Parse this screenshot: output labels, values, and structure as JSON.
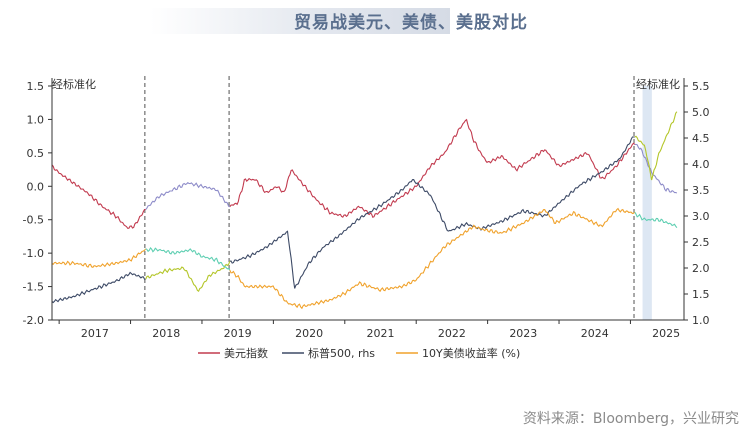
{
  "title": "贸易战美元、美债、美股对比",
  "source": "资料来源：Bloomberg，兴业研究",
  "colors": {
    "dollar": "#c23b4f",
    "dollar_highlight": "#8e8cc9",
    "sp500": "#3d4a66",
    "sp500_highlight": "#b4c62a",
    "yield": "#f0a22c",
    "yield_highlight": "#5fcfb2",
    "shade": "#dde7f3",
    "divider": "#7a7a7a"
  },
  "chart_data": {
    "type": "line",
    "left_axis": {
      "unit_label": "经标准化",
      "ylim": [
        -2.0,
        1.5
      ],
      "ticks": [
        "1.5",
        "1.0",
        "0.5",
        "0.0",
        "-0.5",
        "-1.0",
        "-1.5",
        "-2.0"
      ]
    },
    "right_axis": {
      "unit_label": "经标准化",
      "ylim": [
        1.0,
        5.5
      ],
      "ticks": [
        "5.5",
        "5.0",
        "4.5",
        "4.0",
        "3.5",
        "3.0",
        "2.5",
        "2.0",
        "1.5",
        "1.0"
      ]
    },
    "x_axis": {
      "xlim": [
        2016.9,
        2025.75
      ],
      "tick_labels": [
        "2017",
        "2018",
        "2019",
        "2020",
        "2021",
        "2022",
        "2023",
        "2024",
        "2025"
      ]
    },
    "trade_war_markers": [
      2018.2,
      2019.38,
      2025.05
    ],
    "shaded_period": [
      2025.17,
      2025.3
    ],
    "legend": [
      "美元指数",
      "标普500, rhs",
      "10Y美债收益率 (%)"
    ],
    "series": [
      {
        "name": "美元指数",
        "axis": "left",
        "x": [
          2016.9,
          2017.0,
          2017.2,
          2017.4,
          2017.6,
          2017.8,
          2017.95,
          2018.05,
          2018.2,
          2018.4,
          2018.6,
          2018.8,
          2019.0,
          2019.2,
          2019.38,
          2019.5,
          2019.6,
          2019.75,
          2019.9,
          2020.05,
          2020.15,
          2020.25,
          2020.4,
          2020.6,
          2020.8,
          2021.0,
          2021.2,
          2021.4,
          2021.6,
          2021.8,
          2022.0,
          2022.2,
          2022.4,
          2022.6,
          2022.7,
          2022.8,
          2022.9,
          2023.0,
          2023.2,
          2023.4,
          2023.6,
          2023.8,
          2024.0,
          2024.2,
          2024.4,
          2024.6,
          2024.8,
          2025.05,
          2025.15,
          2025.3,
          2025.5,
          2025.65
        ],
        "y": [
          0.3,
          0.2,
          0.05,
          -0.1,
          -0.3,
          -0.45,
          -0.62,
          -0.6,
          -0.35,
          -0.15,
          -0.05,
          0.05,
          0.0,
          -0.05,
          -0.3,
          -0.25,
          0.1,
          0.1,
          -0.1,
          0.0,
          -0.1,
          0.25,
          0.05,
          -0.2,
          -0.4,
          -0.45,
          -0.3,
          -0.45,
          -0.3,
          -0.15,
          0.0,
          0.3,
          0.5,
          0.85,
          1.0,
          0.7,
          0.5,
          0.35,
          0.45,
          0.25,
          0.4,
          0.55,
          0.3,
          0.4,
          0.5,
          0.1,
          0.3,
          0.65,
          0.55,
          0.2,
          -0.05,
          -0.1
        ]
      },
      {
        "name": "标普500, rhs",
        "axis": "right",
        "x": [
          2016.9,
          2017.2,
          2017.5,
          2017.8,
          2018.0,
          2018.2,
          2018.5,
          2018.75,
          2018.95,
          2019.1,
          2019.3,
          2019.38,
          2019.5,
          2019.7,
          2019.9,
          2020.1,
          2020.2,
          2020.3,
          2020.5,
          2020.7,
          2020.9,
          2021.2,
          2021.5,
          2021.8,
          2021.95,
          2022.2,
          2022.45,
          2022.7,
          2022.9,
          2023.2,
          2023.5,
          2023.8,
          2024.0,
          2024.3,
          2024.6,
          2024.85,
          2025.05,
          2025.2,
          2025.3,
          2025.4,
          2025.65
        ],
        "y": [
          1.35,
          1.45,
          1.6,
          1.75,
          1.9,
          1.8,
          1.95,
          2.0,
          1.55,
          1.85,
          2.0,
          2.1,
          2.15,
          2.25,
          2.4,
          2.6,
          2.7,
          1.6,
          2.1,
          2.4,
          2.6,
          2.95,
          3.2,
          3.5,
          3.7,
          3.4,
          2.7,
          2.85,
          2.75,
          2.9,
          3.1,
          3.0,
          3.25,
          3.6,
          3.85,
          4.1,
          4.55,
          4.35,
          3.7,
          4.2,
          5.0
        ]
      },
      {
        "name": "10Y美债收益率 (%)",
        "axis": "left",
        "x": [
          2016.9,
          2017.2,
          2017.5,
          2017.8,
          2018.0,
          2018.2,
          2018.4,
          2018.6,
          2018.85,
          2019.0,
          2019.2,
          2019.38,
          2019.5,
          2019.6,
          2019.8,
          2020.0,
          2020.2,
          2020.4,
          2020.6,
          2020.8,
          2021.0,
          2021.2,
          2021.5,
          2021.8,
          2022.0,
          2022.2,
          2022.4,
          2022.6,
          2022.8,
          2022.95,
          2023.2,
          2023.5,
          2023.8,
          2023.95,
          2024.2,
          2024.4,
          2024.6,
          2024.8,
          2025.05,
          2025.2,
          2025.4,
          2025.65
        ],
        "y": [
          -1.15,
          -1.15,
          -1.2,
          -1.15,
          -1.1,
          -0.95,
          -0.95,
          -1.0,
          -0.95,
          -1.05,
          -1.1,
          -1.25,
          -1.35,
          -1.5,
          -1.5,
          -1.5,
          -1.75,
          -1.8,
          -1.75,
          -1.7,
          -1.6,
          -1.45,
          -1.55,
          -1.5,
          -1.4,
          -1.15,
          -0.9,
          -0.75,
          -0.6,
          -0.65,
          -0.7,
          -0.55,
          -0.35,
          -0.55,
          -0.4,
          -0.5,
          -0.6,
          -0.35,
          -0.4,
          -0.5,
          -0.5,
          -0.6
        ]
      }
    ]
  }
}
